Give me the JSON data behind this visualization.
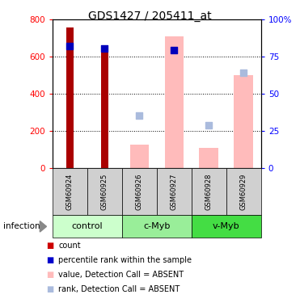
{
  "title": "GDS1427 / 205411_at",
  "samples": [
    "GSM60924",
    "GSM60925",
    "GSM60926",
    "GSM60927",
    "GSM60928",
    "GSM60929"
  ],
  "groups": [
    {
      "label": "control",
      "samples": [
        "GSM60924",
        "GSM60925"
      ],
      "color": "#ccffcc"
    },
    {
      "label": "c-Myb",
      "samples": [
        "GSM60926",
        "GSM60927"
      ],
      "color": "#99ee99"
    },
    {
      "label": "v-Myb",
      "samples": [
        "GSM60928",
        "GSM60929"
      ],
      "color": "#44dd44"
    }
  ],
  "count_values": [
    760,
    660,
    0,
    0,
    0,
    0
  ],
  "percentile_values": [
    660,
    645,
    0,
    635,
    0,
    0
  ],
  "absent_value_bars": [
    0,
    0,
    125,
    710,
    110,
    500
  ],
  "absent_rank_dots": [
    0,
    0,
    285,
    0,
    230,
    515
  ],
  "ylim": [
    0,
    800
  ],
  "y2lim": [
    0,
    100
  ],
  "yticks": [
    0,
    200,
    400,
    600,
    800
  ],
  "y2ticks": [
    0,
    25,
    50,
    75,
    100
  ],
  "count_color": "#aa0000",
  "percentile_color": "#0000bb",
  "absent_value_color": "#ffbbbb",
  "absent_rank_color": "#aabbdd",
  "legend_items": [
    {
      "label": "count",
      "color": "#cc0000"
    },
    {
      "label": "percentile rank within the sample",
      "color": "#0000cc"
    },
    {
      "label": "value, Detection Call = ABSENT",
      "color": "#ffbbbb"
    },
    {
      "label": "rank, Detection Call = ABSENT",
      "color": "#aabbdd"
    }
  ],
  "infection_label": "infection",
  "figsize": [
    3.71,
    3.75
  ],
  "dpi": 100
}
